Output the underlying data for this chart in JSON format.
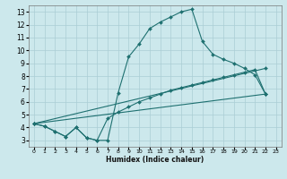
{
  "title": "",
  "xlabel": "Humidex (Indice chaleur)",
  "bg_color": "#cce8ec",
  "grid_color": "#aacdd4",
  "line_color": "#1e7070",
  "xlim": [
    -0.5,
    23.5
  ],
  "ylim": [
    2.5,
    13.5
  ],
  "xticks": [
    0,
    1,
    2,
    3,
    4,
    5,
    6,
    7,
    8,
    9,
    10,
    11,
    12,
    13,
    14,
    15,
    16,
    17,
    18,
    19,
    20,
    21,
    22,
    23
  ],
  "yticks": [
    3,
    4,
    5,
    6,
    7,
    8,
    9,
    10,
    11,
    12,
    13
  ],
  "curve1_x": [
    0,
    1,
    2,
    3,
    4,
    5,
    6,
    7,
    8,
    9,
    10,
    11,
    12,
    13,
    14,
    15,
    16,
    17,
    18,
    19,
    20,
    21,
    22
  ],
  "curve1_y": [
    4.3,
    4.1,
    3.7,
    3.3,
    4.0,
    3.2,
    3.0,
    3.0,
    6.7,
    9.5,
    10.5,
    11.7,
    12.2,
    12.6,
    13.0,
    13.2,
    10.7,
    9.7,
    9.3,
    9.0,
    8.6,
    8.1,
    6.6
  ],
  "curve2_x": [
    0,
    1,
    2,
    3,
    4,
    5,
    6,
    7,
    8,
    9,
    10,
    11,
    12,
    13,
    14,
    15,
    16,
    17,
    18,
    19,
    20,
    21,
    22
  ],
  "curve2_y": [
    4.3,
    4.1,
    3.7,
    3.3,
    4.0,
    3.2,
    3.0,
    4.7,
    5.2,
    5.6,
    6.0,
    6.3,
    6.6,
    6.9,
    7.1,
    7.3,
    7.5,
    7.7,
    7.9,
    8.1,
    8.3,
    8.5,
    6.6
  ],
  "line1_x": [
    0,
    22
  ],
  "line1_y": [
    4.3,
    6.6
  ],
  "line2_x": [
    0,
    22
  ],
  "line2_y": [
    4.3,
    8.6
  ],
  "marker": "D",
  "markersize": 2.0,
  "linewidth": 0.8
}
